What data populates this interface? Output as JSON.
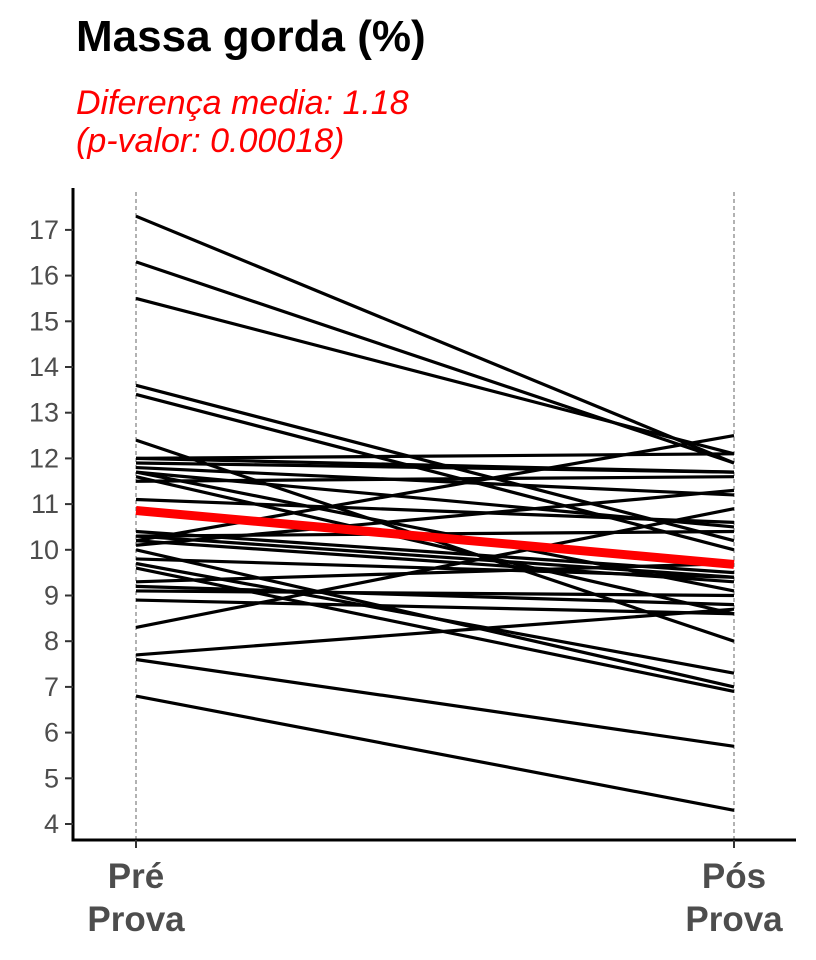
{
  "chart_data": {
    "type": "line",
    "title": "Massa gorda (%)",
    "subtitle_lines": [
      "Diferença media: 1.18",
      "(p-valor: 0.00018)"
    ],
    "categories": [
      [
        "Pré",
        "Prova"
      ],
      [
        "Pós",
        "Prova"
      ]
    ],
    "ylim": [
      3.7,
      17.9
    ],
    "yticks": [
      4,
      5,
      6,
      7,
      8,
      9,
      10,
      11,
      12,
      13,
      14,
      15,
      16,
      17
    ],
    "grid": false,
    "pairs": [
      [
        17.3,
        11.9
      ],
      [
        16.3,
        11.9
      ],
      [
        15.5,
        12.1
      ],
      [
        13.6,
        10.2
      ],
      [
        13.4,
        10.0
      ],
      [
        12.4,
        8.0
      ],
      [
        12.0,
        12.1
      ],
      [
        12.0,
        11.7
      ],
      [
        11.9,
        11.7
      ],
      [
        11.8,
        11.2
      ],
      [
        11.7,
        10.5
      ],
      [
        11.7,
        9.1
      ],
      [
        11.6,
        8.6
      ],
      [
        11.5,
        11.6
      ],
      [
        11.1,
        10.6
      ],
      [
        10.4,
        9.5
      ],
      [
        10.3,
        10.4
      ],
      [
        10.3,
        9.4
      ],
      [
        10.2,
        9.3
      ],
      [
        10.2,
        12.5
      ],
      [
        10.1,
        11.3
      ],
      [
        10.0,
        7.0
      ],
      [
        9.8,
        9.4
      ],
      [
        9.7,
        7.3
      ],
      [
        9.6,
        6.9
      ],
      [
        9.3,
        9.7
      ],
      [
        9.2,
        8.8
      ],
      [
        9.1,
        9.0
      ],
      [
        8.9,
        8.6
      ],
      [
        8.3,
        10.9
      ],
      [
        7.7,
        8.7
      ],
      [
        7.6,
        5.7
      ],
      [
        6.8,
        4.3
      ]
    ],
    "mean": [
      10.86,
      9.68
    ],
    "colors": {
      "individual": "#000000",
      "mean": "#ff0000",
      "subtitle": "#ff0000"
    }
  }
}
